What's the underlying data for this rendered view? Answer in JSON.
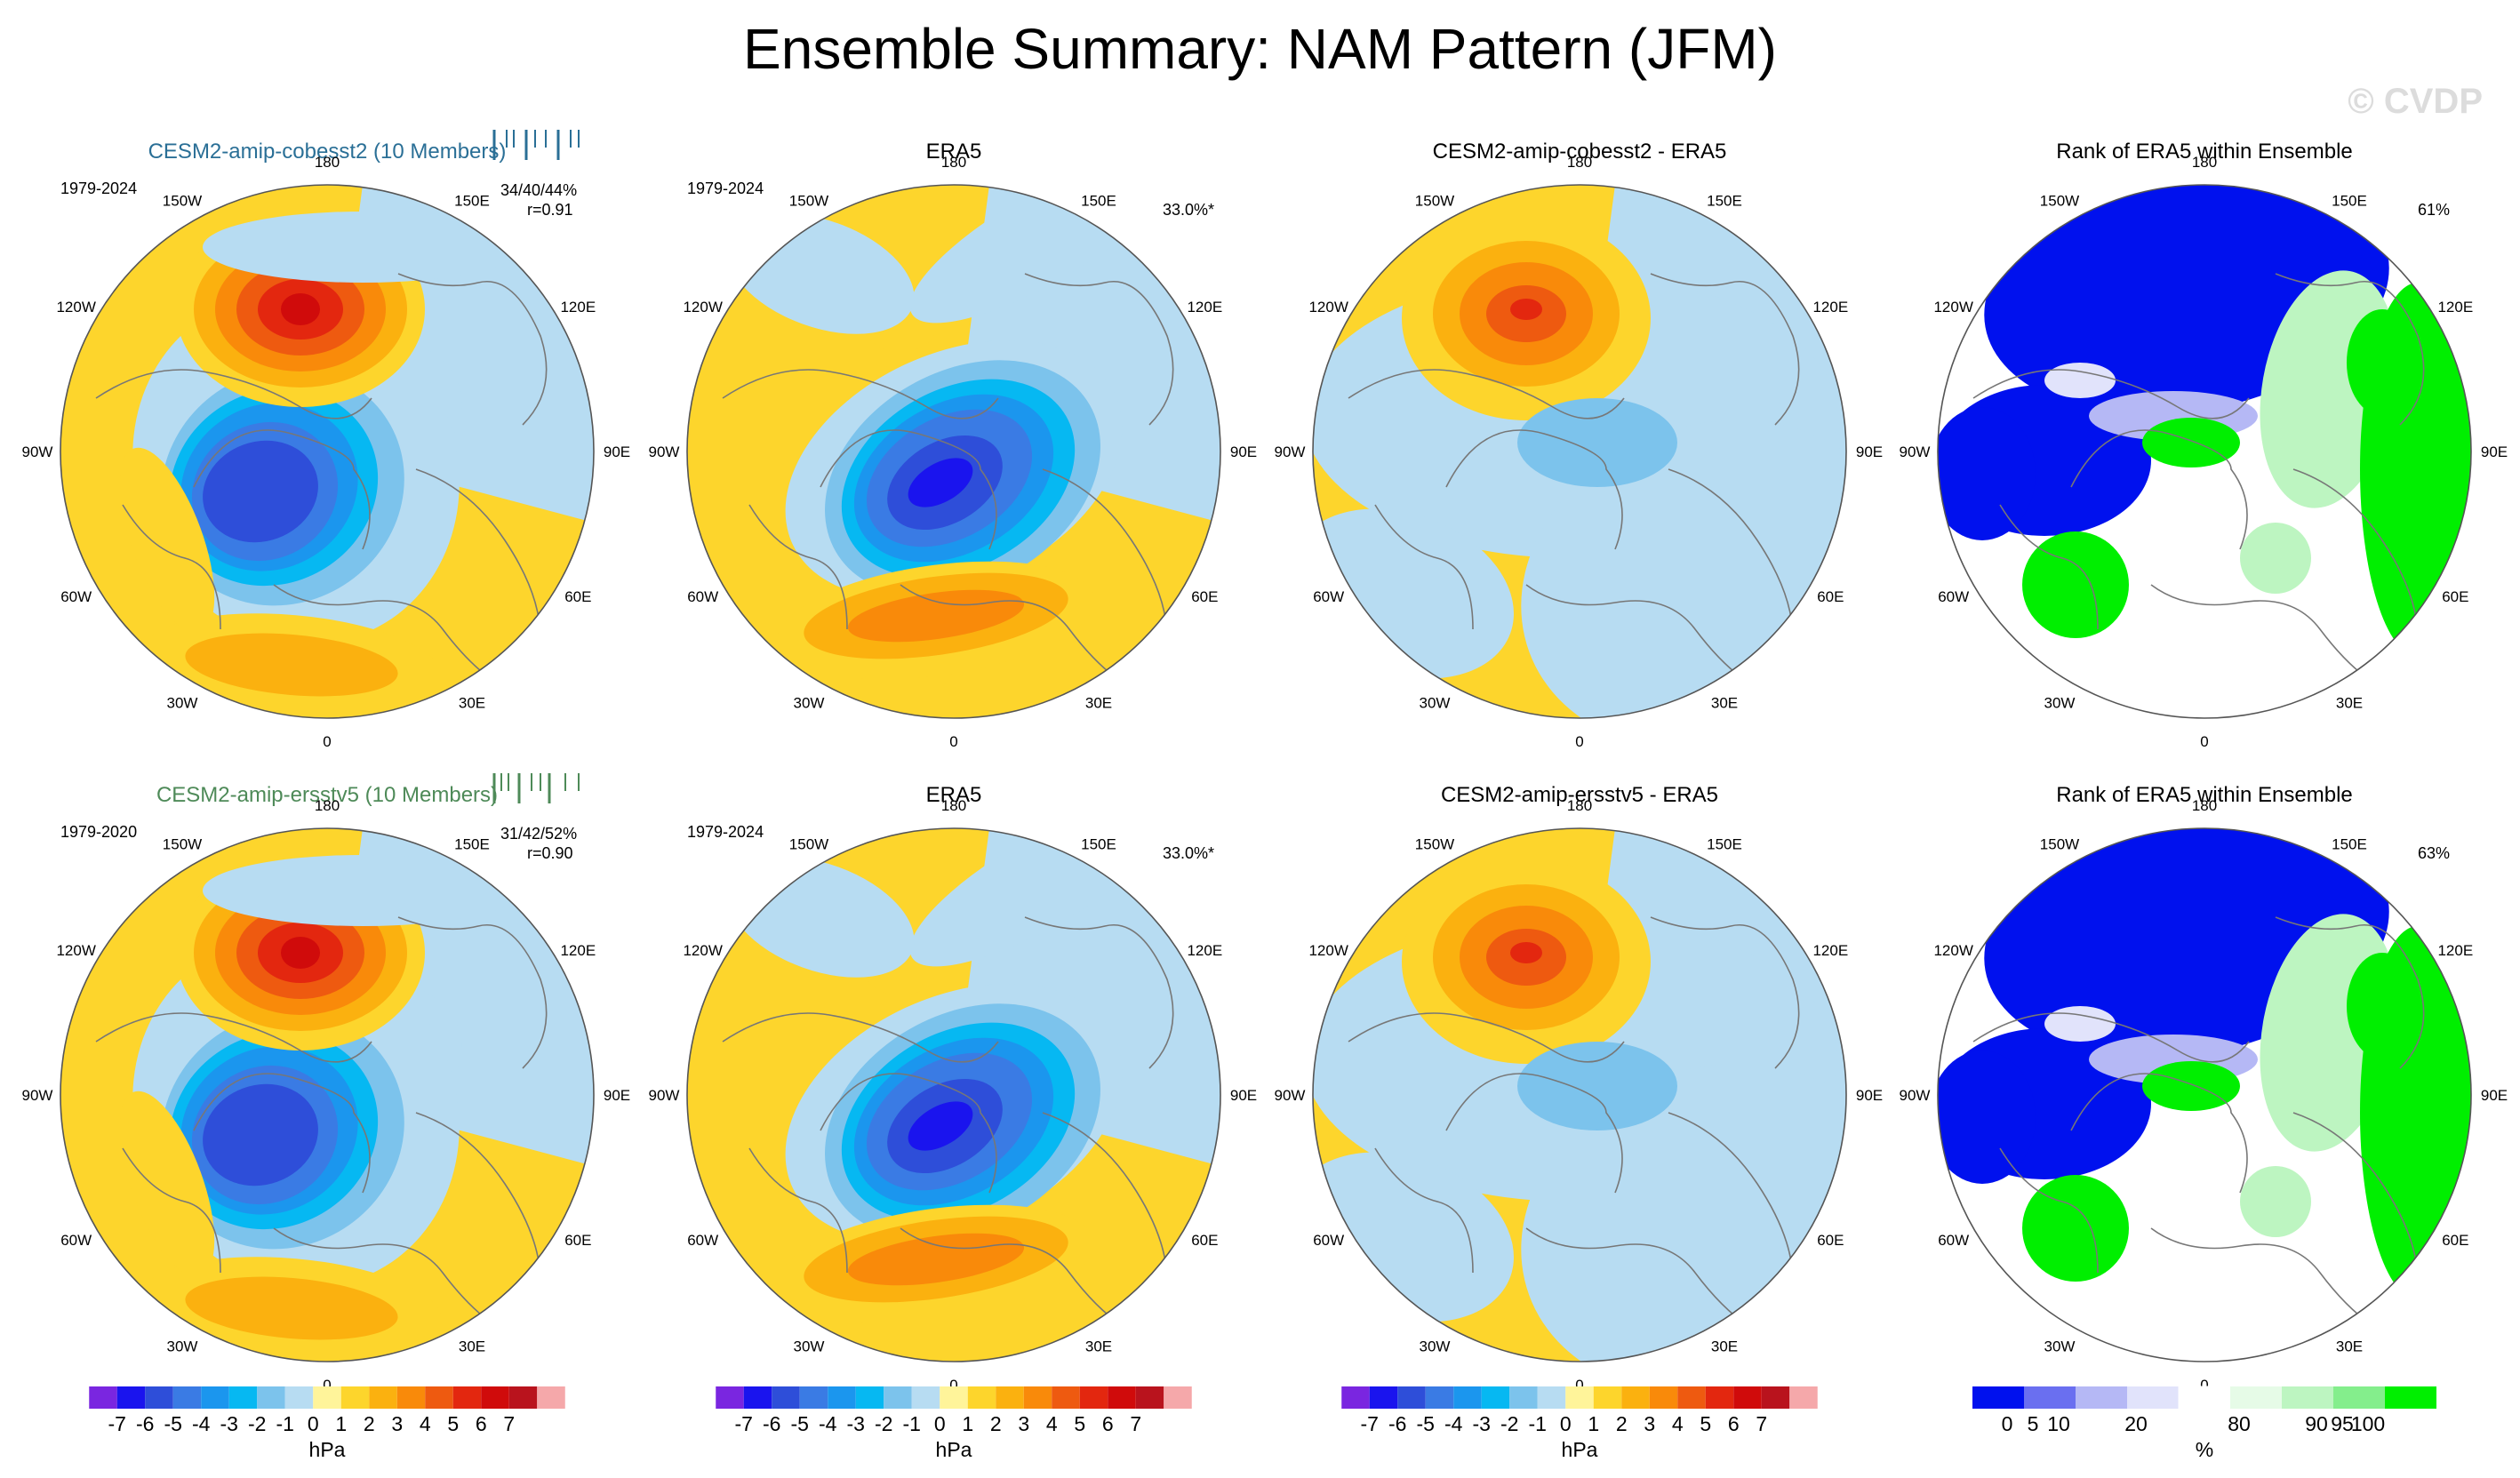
{
  "page": {
    "title": "Ensemble Summary: NAM Pattern (JFM)",
    "watermark": "© CVDP"
  },
  "colors": {
    "blue_brown": [
      "#7a26e0",
      "#1a14ee",
      "#2e4ed9",
      "#3a7be4",
      "#1b96ee",
      "#06b8f2",
      "#7cc3ec",
      "#b7dcf2",
      "#fff49a",
      "#fdd52c",
      "#fbb10f",
      "#f98a0a",
      "#ee5a10",
      "#e3270f",
      "#d00b0b",
      "#b9131d",
      "#f5a8aa"
    ],
    "rank": [
      "#0011ee",
      "#6a6ff0",
      "#b5b8f5",
      "#e1e3fb",
      "#ffffff",
      "#e6fbe7",
      "#bdf5c1",
      "#84ee8c",
      "#00ef00"
    ],
    "coast": "#777777"
  },
  "longitude_labels": [
    "180",
    "150E",
    "120E",
    "90E",
    "60E",
    "30E",
    "0",
    "30W",
    "60W",
    "90W",
    "120W",
    "150W"
  ],
  "colorbars": {
    "anomaly": {
      "labels": [
        "-7",
        "-6",
        "-5",
        "-4",
        "-3",
        "-2",
        "-1",
        "0",
        "1",
        "2",
        "3",
        "4",
        "5",
        "6",
        "7"
      ],
      "unit": "hPa"
    },
    "rank": {
      "labels": [
        "0",
        "5",
        "10",
        "20",
        "80",
        "90",
        "95",
        "100"
      ],
      "unit": "%"
    }
  },
  "panels": [
    {
      "id": "r1c1",
      "kind": "model",
      "title": "CESM2-amip-cobesst2 (10 Members)",
      "period": "1979-2024",
      "stats": "34/40/44%",
      "corr": "r=0.91",
      "title_color": "#2a6f96",
      "ensemble_ticks": [
        0.0,
        0.14,
        0.22,
        0.36,
        0.46,
        0.58,
        0.72,
        0.86,
        0.95
      ]
    },
    {
      "id": "r1c2",
      "kind": "obs",
      "title": "ERA5",
      "period": "1979-2024",
      "variance": "33.0%*"
    },
    {
      "id": "r1c3",
      "kind": "diff",
      "title": "CESM2-amip-cobesst2 - ERA5"
    },
    {
      "id": "r1c4",
      "kind": "rank",
      "title": "Rank of ERA5 within Ensemble",
      "pct": "61%"
    },
    {
      "id": "r2c1",
      "kind": "model",
      "title": "CESM2-amip-ersstv5 (10 Members)",
      "period": "1979-2020",
      "stats": "31/42/52%",
      "corr": "r=0.90",
      "title_color": "#4e8a58",
      "ensemble_ticks": [
        0.0,
        0.08,
        0.16,
        0.28,
        0.42,
        0.52,
        0.62,
        0.8,
        0.95
      ]
    },
    {
      "id": "r2c2",
      "kind": "obs",
      "title": "ERA5",
      "period": "1979-2024",
      "variance": "33.0%*"
    },
    {
      "id": "r2c3",
      "kind": "diff",
      "title": "CESM2-amip-ersstv5 - ERA5"
    },
    {
      "id": "r2c4",
      "kind": "rank",
      "title": "Rank of ERA5 within Ensemble",
      "pct": "63%"
    }
  ],
  "chart_data": {
    "type": "heatmap",
    "projection": "north polar stereographic",
    "variable": "sea level pressure NAM pattern",
    "season": "JFM",
    "units": "hPa",
    "contour_levels": [
      -7,
      -6,
      -5,
      -4,
      -3,
      -2,
      -1,
      0,
      1,
      2,
      3,
      4,
      5,
      6,
      7
    ],
    "rank_levels": [
      0,
      5,
      10,
      20,
      80,
      90,
      95,
      100
    ],
    "rank_units": "%",
    "rank_pct": {
      "cobesst2": 61,
      "ersstv5": 63
    },
    "pattern_correlation": {
      "cobesst2": 0.91,
      "ersstv5": 0.9
    },
    "explained_variance": {
      "ERA5": "33.0%*",
      "cobesst2": "34/40/44%",
      "ersstv5": "31/42/52%"
    }
  }
}
